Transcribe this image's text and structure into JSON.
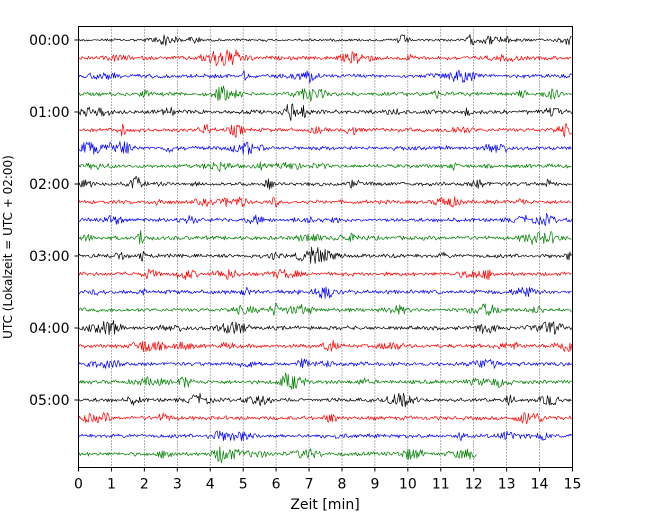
{
  "chart_data": {
    "type": "line",
    "title": "",
    "xlabel": "Zeit  [min]",
    "ylabel": "UTC (Lokalzeit = UTC + 02:00)",
    "xlim": [
      0,
      15
    ],
    "x_ticks": [
      0,
      1,
      2,
      3,
      4,
      5,
      6,
      7,
      8,
      9,
      10,
      11,
      12,
      13,
      14,
      15
    ],
    "x_tick_labels": [
      "0",
      "1",
      "2",
      "3",
      "4",
      "5",
      "6",
      "7",
      "8",
      "9",
      "10",
      "11",
      "12",
      "13",
      "14",
      "15"
    ],
    "y_tick_labels": [
      "00:00",
      "01:00",
      "02:00",
      "03:00",
      "04:00",
      "05:00"
    ],
    "grid": "x-only, dotted",
    "trace_interval_minutes": 15,
    "trace_count": 24,
    "last_trace_end_minute": 12.1,
    "colors": [
      "#000000",
      "#ff0000",
      "#0000ff",
      "#008000"
    ]
  }
}
